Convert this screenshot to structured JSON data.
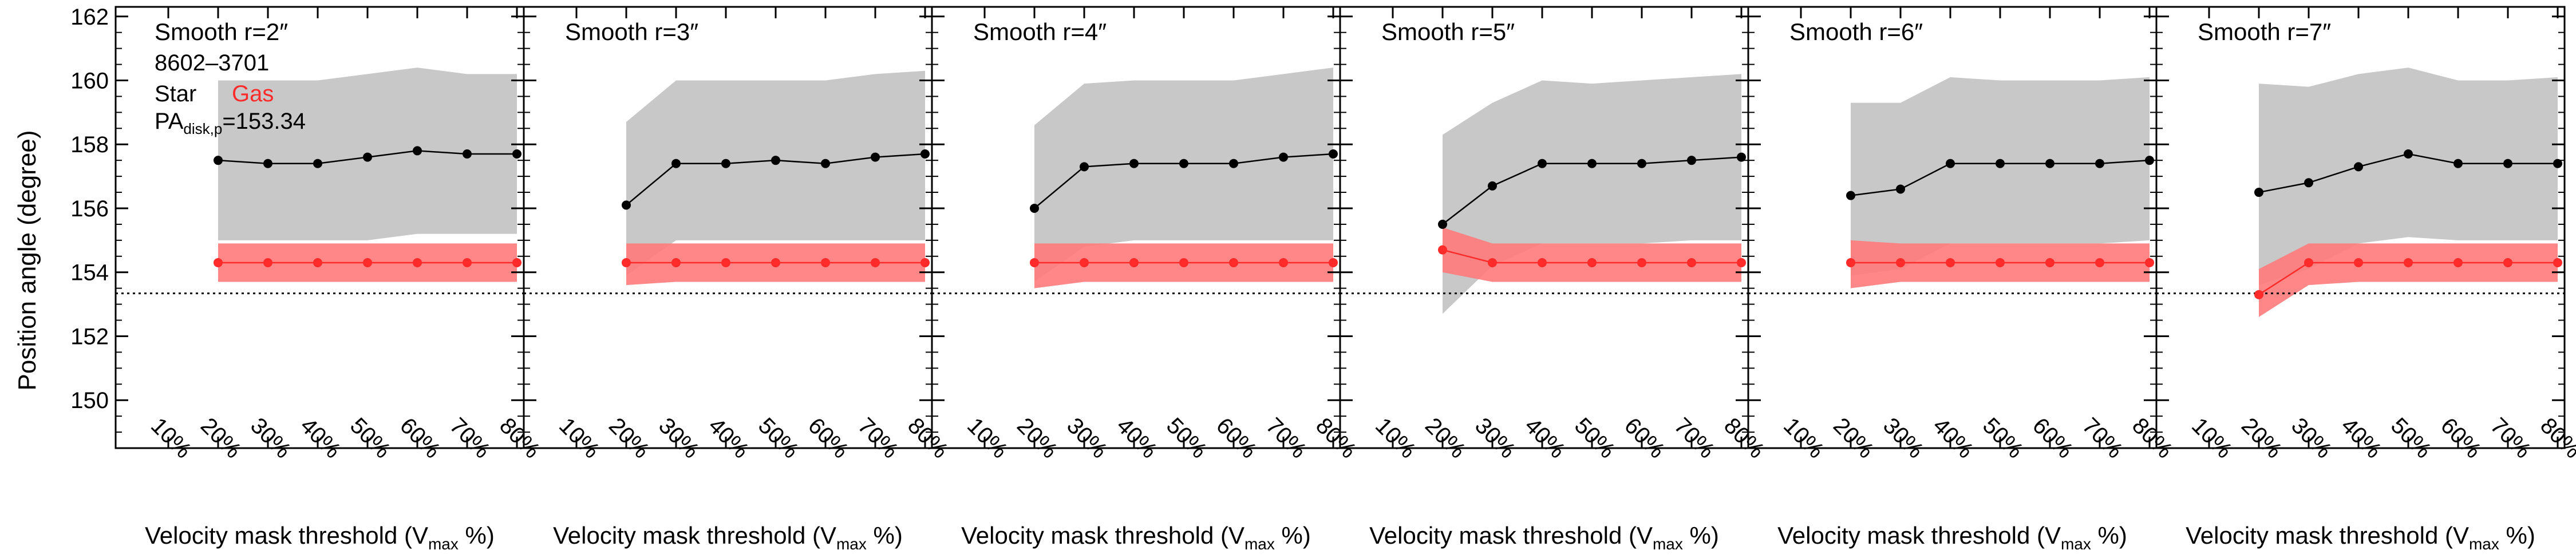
{
  "figure": {
    "ylabel": "Position angle (degree)",
    "ylim": [
      148.5,
      162.3
    ],
    "yticks": [
      150,
      152,
      154,
      156,
      158,
      160,
      162
    ],
    "ytick_labels": [
      "150",
      "152",
      "154",
      "156",
      "158",
      "160",
      "162"
    ],
    "x_categories": [
      "10%",
      "20%",
      "30%",
      "40%",
      "50%",
      "60%",
      "70%",
      "80%"
    ],
    "xlabel_main": "Velocity mask threshold (V",
    "xlabel_sub": "max",
    "xlabel_end": " %)",
    "reference_line": 153.34,
    "colors": {
      "star": "#000000",
      "gas": "#ff2a2a",
      "star_band": "#c8c8c8",
      "gas_band": "#ff7a7a"
    }
  },
  "legend": {
    "galaxy_id": "8602–3701",
    "star_label": "Star",
    "gas_label": "Gas",
    "pa_prefix": "PA",
    "pa_sub": "disk,p",
    "pa_value": "=153.34"
  },
  "chart_data": [
    {
      "type": "line",
      "title": "Smooth r=2″",
      "x": [
        "20%",
        "30%",
        "40%",
        "50%",
        "60%",
        "70%",
        "80%"
      ],
      "series": [
        {
          "name": "Star",
          "values": [
            157.5,
            157.4,
            157.4,
            157.6,
            157.8,
            157.7,
            157.7
          ],
          "band_low": [
            155.0,
            155.0,
            155.0,
            155.0,
            155.2,
            155.2,
            155.2
          ],
          "band_high": [
            160.0,
            160.0,
            160.0,
            160.2,
            160.4,
            160.2,
            160.2
          ]
        },
        {
          "name": "Gas",
          "values": [
            154.3,
            154.3,
            154.3,
            154.3,
            154.3,
            154.3,
            154.3
          ],
          "band_low": [
            153.7,
            153.7,
            153.7,
            153.7,
            153.7,
            153.7,
            153.7
          ],
          "band_high": [
            154.9,
            154.9,
            154.9,
            154.9,
            154.9,
            154.9,
            154.9
          ]
        }
      ]
    },
    {
      "type": "line",
      "title": "Smooth r=3″",
      "x": [
        "20%",
        "30%",
        "40%",
        "50%",
        "60%",
        "70%",
        "80%"
      ],
      "series": [
        {
          "name": "Star",
          "values": [
            156.1,
            157.4,
            157.4,
            157.5,
            157.4,
            157.6,
            157.7
          ],
          "band_low": [
            153.9,
            155.0,
            155.0,
            155.0,
            155.0,
            155.0,
            155.0
          ],
          "band_high": [
            158.7,
            160.0,
            160.0,
            160.0,
            160.0,
            160.2,
            160.3
          ]
        },
        {
          "name": "Gas",
          "values": [
            154.3,
            154.3,
            154.3,
            154.3,
            154.3,
            154.3,
            154.3
          ],
          "band_low": [
            153.6,
            153.7,
            153.7,
            153.7,
            153.7,
            153.7,
            153.7
          ],
          "band_high": [
            154.9,
            154.9,
            154.9,
            154.9,
            154.9,
            154.9,
            154.9
          ]
        }
      ]
    },
    {
      "type": "line",
      "title": "Smooth r=4″",
      "x": [
        "20%",
        "30%",
        "40%",
        "50%",
        "60%",
        "70%",
        "80%"
      ],
      "series": [
        {
          "name": "Star",
          "values": [
            156.0,
            157.3,
            157.4,
            157.4,
            157.4,
            157.6,
            157.7
          ],
          "band_low": [
            153.7,
            154.8,
            155.0,
            155.0,
            155.0,
            155.0,
            155.0
          ],
          "band_high": [
            158.6,
            159.9,
            160.0,
            160.0,
            160.0,
            160.2,
            160.4
          ]
        },
        {
          "name": "Gas",
          "values": [
            154.3,
            154.3,
            154.3,
            154.3,
            154.3,
            154.3,
            154.3
          ],
          "band_low": [
            153.5,
            153.7,
            153.7,
            153.7,
            153.7,
            153.7,
            153.7
          ],
          "band_high": [
            154.9,
            154.9,
            154.9,
            154.9,
            154.9,
            154.9,
            154.9
          ]
        }
      ]
    },
    {
      "type": "line",
      "title": "Smooth r=5″",
      "x": [
        "20%",
        "30%",
        "40%",
        "50%",
        "60%",
        "70%",
        "80%"
      ],
      "series": [
        {
          "name": "Star",
          "values": [
            155.5,
            156.7,
            157.4,
            157.4,
            157.4,
            157.5,
            157.6
          ],
          "band_low": [
            152.7,
            154.2,
            154.9,
            154.9,
            154.9,
            155.0,
            155.0
          ],
          "band_high": [
            158.3,
            159.3,
            160.0,
            159.9,
            160.0,
            160.1,
            160.2
          ]
        },
        {
          "name": "Gas",
          "values": [
            154.7,
            154.3,
            154.3,
            154.3,
            154.3,
            154.3,
            154.3
          ],
          "band_low": [
            154.0,
            153.7,
            153.7,
            153.7,
            153.7,
            153.7,
            153.7
          ],
          "band_high": [
            155.4,
            154.9,
            154.9,
            154.9,
            154.9,
            154.9,
            154.9
          ]
        }
      ]
    },
    {
      "type": "line",
      "title": "Smooth r=6″",
      "x": [
        "20%",
        "30%",
        "40%",
        "50%",
        "60%",
        "70%",
        "80%"
      ],
      "series": [
        {
          "name": "Star",
          "values": [
            156.4,
            156.6,
            157.4,
            157.4,
            157.4,
            157.4,
            157.5
          ],
          "band_low": [
            153.9,
            154.1,
            154.9,
            154.9,
            154.9,
            154.9,
            155.0
          ],
          "band_high": [
            159.3,
            159.3,
            160.1,
            160.0,
            160.0,
            160.0,
            160.1
          ]
        },
        {
          "name": "Gas",
          "values": [
            154.3,
            154.3,
            154.3,
            154.3,
            154.3,
            154.3,
            154.3
          ],
          "band_low": [
            153.5,
            153.7,
            153.7,
            153.7,
            153.7,
            153.7,
            153.7
          ],
          "band_high": [
            155.0,
            154.9,
            154.9,
            154.9,
            154.9,
            154.9,
            154.9
          ]
        }
      ]
    },
    {
      "type": "line",
      "title": "Smooth r=7″",
      "x": [
        "20%",
        "30%",
        "40%",
        "50%",
        "60%",
        "70%",
        "80%"
      ],
      "series": [
        {
          "name": "Star",
          "values": [
            156.5,
            156.8,
            157.3,
            157.7,
            157.4,
            157.4,
            157.4
          ],
          "band_low": [
            153.6,
            154.1,
            154.9,
            155.1,
            155.0,
            155.0,
            155.0
          ],
          "band_high": [
            159.9,
            159.8,
            160.2,
            160.4,
            160.0,
            160.0,
            160.1
          ]
        },
        {
          "name": "Gas",
          "values": [
            153.3,
            154.3,
            154.3,
            154.3,
            154.3,
            154.3,
            154.3
          ],
          "band_low": [
            152.6,
            153.6,
            153.7,
            153.7,
            153.7,
            153.7,
            153.7
          ],
          "band_high": [
            154.1,
            154.9,
            154.9,
            154.9,
            154.9,
            154.9,
            154.9
          ]
        }
      ]
    }
  ]
}
